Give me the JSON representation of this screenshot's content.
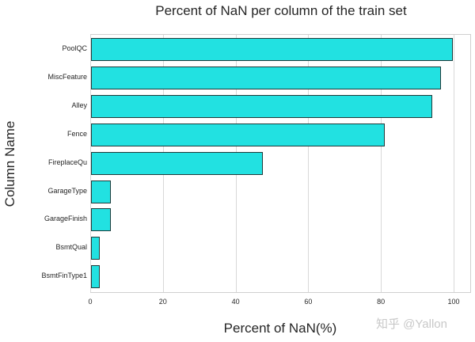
{
  "chart_data": {
    "type": "bar",
    "orientation": "horizontal",
    "title": "Percent of NaN per column of the train set",
    "xlabel": "Percent of NaN(%)",
    "ylabel": "Column Name",
    "categories": [
      "PoolQC",
      "MiscFeature",
      "Alley",
      "Fence",
      "FireplaceQu",
      "GarageType",
      "GarageFinish",
      "BsmtQual",
      "BsmtFinType1"
    ],
    "values": [
      99.5,
      96.3,
      93.8,
      80.8,
      47.3,
      5.5,
      5.5,
      2.5,
      2.5
    ],
    "xlim": [
      0,
      105
    ],
    "xticks": [
      "0",
      "20",
      "40",
      "60",
      "80",
      "100"
    ],
    "grid": true,
    "bar_color": "#22e1e1",
    "edge_color": "#1f3a3a"
  },
  "watermark": "知乎 @Yallon"
}
